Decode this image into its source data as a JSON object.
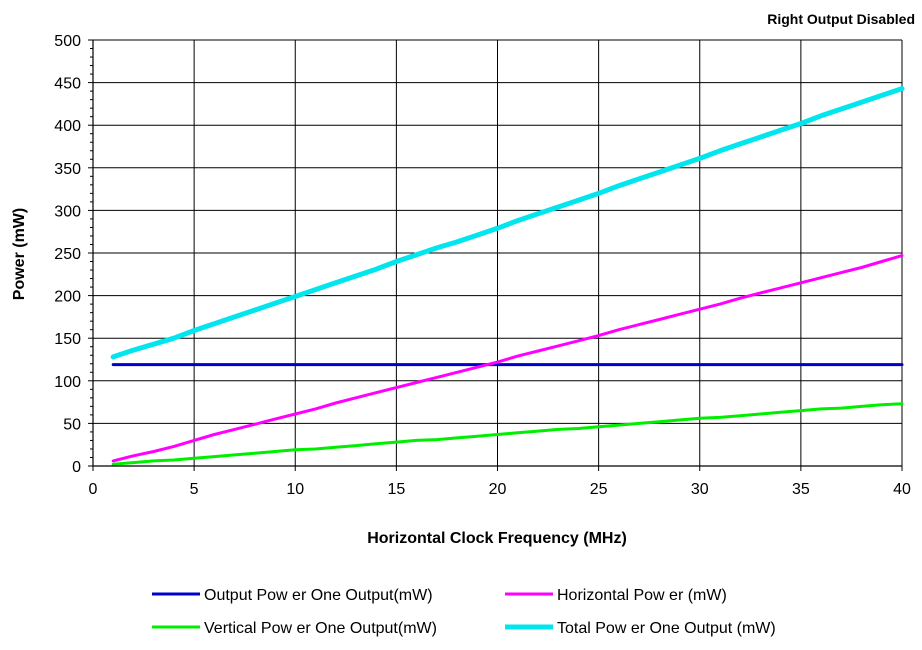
{
  "chart_data": {
    "type": "line",
    "title": "Right Output Disabled",
    "xlabel": "Horizontal Clock Frequency (MHz)",
    "ylabel": "Power (mW)",
    "xlim": [
      0,
      40
    ],
    "ylim": [
      0,
      500
    ],
    "x_ticks": [
      "0",
      "5",
      "10",
      "15",
      "20",
      "25",
      "30",
      "35",
      "40"
    ],
    "y_ticks": [
      "0",
      "50",
      "100",
      "150",
      "200",
      "250",
      "300",
      "350",
      "400",
      "450",
      "500"
    ],
    "grid": true,
    "legend_position": "bottom",
    "x": [
      1,
      2,
      3,
      4,
      5,
      6,
      7,
      8,
      9,
      10,
      11,
      12,
      13,
      14,
      15,
      16,
      17,
      18,
      19,
      20,
      21,
      22,
      23,
      24,
      25,
      26,
      27,
      28,
      29,
      30,
      31,
      32,
      33,
      34,
      35,
      36,
      37,
      38,
      39,
      40
    ],
    "series": [
      {
        "name": "Output Pow er One Output(mW)",
        "color": "#0000cc",
        "values": [
          119,
          119,
          119,
          119,
          119,
          119,
          119,
          119,
          119,
          119,
          119,
          119,
          119,
          119,
          119,
          119,
          119,
          119,
          119,
          119,
          119,
          119,
          119,
          119,
          119,
          119,
          119,
          119,
          119,
          119,
          119,
          119,
          119,
          119,
          119,
          119,
          119,
          119,
          119,
          119
        ]
      },
      {
        "name": "Horizontal Pow er (mW)",
        "color": "#ff00ff",
        "values": [
          6,
          12,
          17,
          23,
          30,
          37,
          43,
          49,
          55,
          61,
          67,
          74,
          80,
          86,
          92,
          98,
          104,
          110,
          116,
          122,
          129,
          135,
          141,
          147,
          153,
          160,
          166,
          172,
          178,
          184,
          190,
          197,
          203,
          209,
          215,
          221,
          227,
          233,
          240,
          247
        ]
      },
      {
        "name": "Vertical Pow er One Output(mW)",
        "color": "#00ee00",
        "values": [
          2,
          4,
          6,
          7,
          9,
          11,
          13,
          15,
          17,
          19,
          20,
          22,
          24,
          26,
          28,
          30,
          31,
          33,
          35,
          37,
          39,
          41,
          43,
          44,
          46,
          48,
          50,
          52,
          54,
          56,
          57,
          59,
          61,
          63,
          65,
          67,
          68,
          70,
          72,
          73
        ]
      },
      {
        "name": "Total Pow er One Output (mW)",
        "color": "#00e5ee",
        "values": [
          128,
          136,
          143,
          150,
          159,
          167,
          175,
          183,
          191,
          199,
          207,
          215,
          223,
          231,
          240,
          248,
          256,
          263,
          271,
          279,
          288,
          296,
          304,
          312,
          320,
          329,
          337,
          345,
          353,
          361,
          370,
          378,
          386,
          394,
          402,
          411,
          419,
          427,
          435,
          443
        ]
      }
    ]
  }
}
